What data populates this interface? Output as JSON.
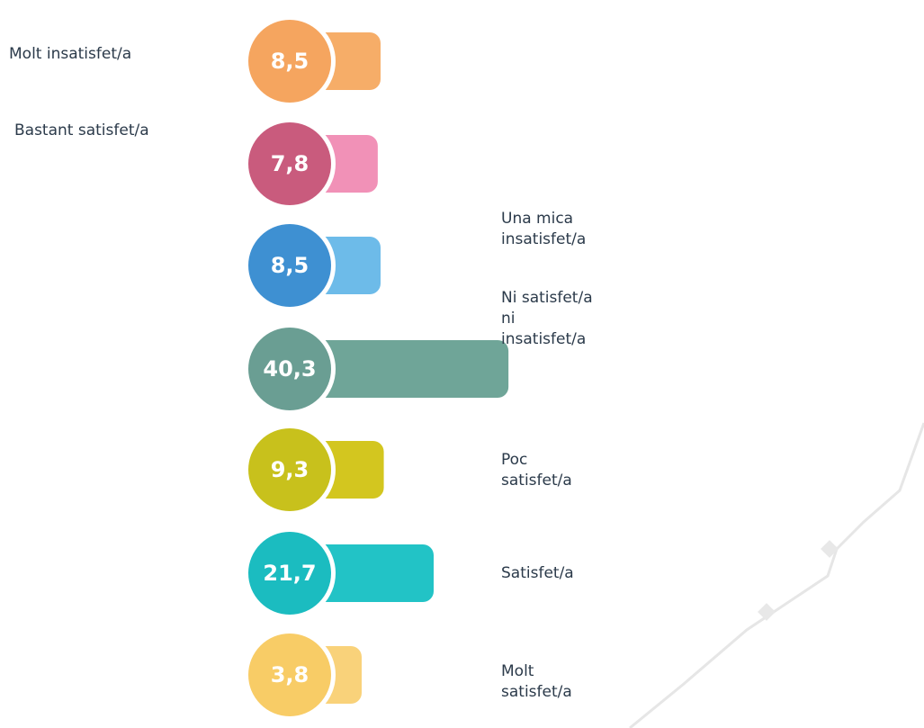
{
  "chart_data": {
    "type": "bar",
    "categories": [
      "Molt insatisfet/a",
      "Bastant satisfet/a",
      "Una mica insatisfet/a",
      "Ni satisfet/a ni insatisfet/a",
      "Poc satisfet/a",
      "Satisfet/a",
      "Molt satisfet/a"
    ],
    "values": [
      8.5,
      7.8,
      8.5,
      40.3,
      9.3,
      21.7,
      3.8
    ],
    "value_labels": [
      "8,5",
      "7,8",
      "8,5",
      "40,3",
      "9,3",
      "21,7",
      "3,8"
    ],
    "colors": [
      "#f5a55f",
      "#c95b7d",
      "#3e90d2",
      "#6a9e93",
      "#c8c11c",
      "#1bbcc0",
      "#f8cc66"
    ],
    "bar_colors": [
      "#f6ad68",
      "#f191b7",
      "#6dbbe9",
      "#6fa598",
      "#d3c61f",
      "#22c3c6",
      "#f9d27a"
    ]
  }
}
